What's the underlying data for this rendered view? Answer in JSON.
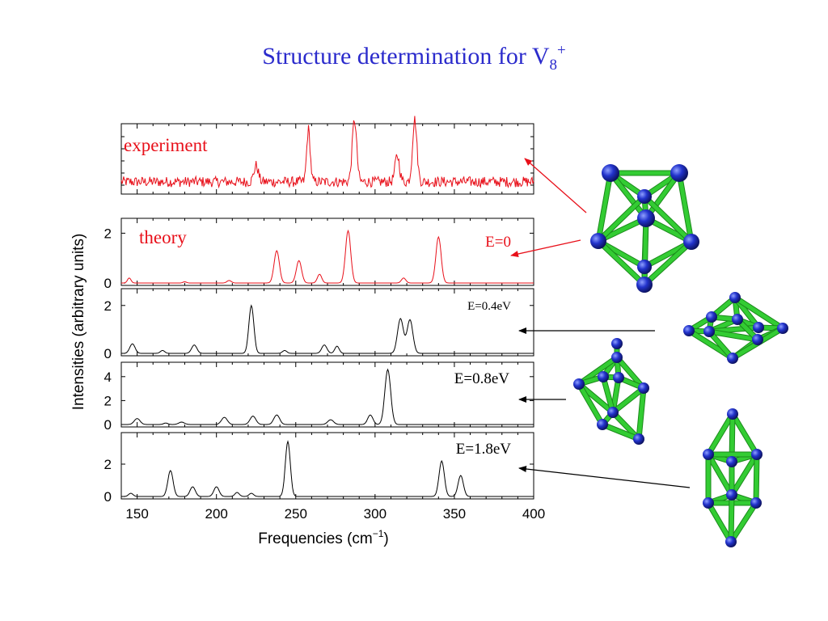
{
  "title": {
    "main": "Structure determination for  V",
    "sub": "8",
    "sup": "+"
  },
  "colors": {
    "title": "#2b2bcc",
    "experiment": "#e8101a",
    "theory": "#e8101a",
    "isomer": "#000000",
    "bond": "#33cc33",
    "atom": "#2233cc"
  },
  "chart_data": {
    "type": "line",
    "xlabel": "Frequencies (cm⁻¹)",
    "xlabel_base": "Frequencies (cm",
    "xlabel_sup": "−1",
    "xlabel_close": ")",
    "ylabel": "Intensities (arbitrary units)",
    "xlim": [
      140,
      400
    ],
    "xticks": [
      "150",
      "200",
      "250",
      "300",
      "350",
      "400"
    ],
    "panels": [
      {
        "label": "experiment",
        "energy": "",
        "color": "#e8101a",
        "ylim": [
          0,
          1
        ],
        "yticks": [],
        "peaks": [
          [
            225,
            0.25,
            1.5
          ],
          [
            258,
            0.8,
            1.2
          ],
          [
            287,
            0.95,
            1.5
          ],
          [
            314,
            0.4,
            1.5
          ],
          [
            325,
            0.95,
            1.5
          ]
        ]
      },
      {
        "label": "theory",
        "energy": "E=0",
        "color": "#e8101a",
        "ylim": [
          0,
          2.5
        ],
        "yticks": [
          "0",
          "2"
        ],
        "peaks": [
          [
            145,
            0.2,
            1.2
          ],
          [
            180,
            0.05,
            1.2
          ],
          [
            208,
            0.1,
            1.5
          ],
          [
            238,
            1.3,
            1.8
          ],
          [
            252,
            0.9,
            1.8
          ],
          [
            265,
            0.35,
            1.5
          ],
          [
            283,
            2.1,
            1.8
          ],
          [
            318,
            0.2,
            1.5
          ],
          [
            340,
            1.85,
            1.8
          ]
        ]
      },
      {
        "label": "",
        "energy": "E=0.4eV",
        "color": "#000000",
        "ylim": [
          0,
          2.6
        ],
        "yticks": [
          "0",
          "2"
        ],
        "peaks": [
          [
            147,
            0.4,
            1.8
          ],
          [
            166,
            0.12,
            1.5
          ],
          [
            186,
            0.35,
            1.8
          ],
          [
            222,
            2.0,
            1.7
          ],
          [
            243,
            0.12,
            1.5
          ],
          [
            268,
            0.35,
            1.8
          ],
          [
            276,
            0.3,
            1.5
          ],
          [
            316,
            1.45,
            2.0
          ],
          [
            322,
            1.4,
            2.0
          ]
        ]
      },
      {
        "label": "",
        "energy": "E=0.8eV",
        "color": "#000000",
        "ylim": [
          0,
          5
        ],
        "yticks": [
          "0",
          "2",
          "4"
        ],
        "peaks": [
          [
            150,
            0.5,
            2.0
          ],
          [
            168,
            0.12,
            1.5
          ],
          [
            178,
            0.2,
            2.0
          ],
          [
            205,
            0.6,
            2.0
          ],
          [
            223,
            0.7,
            2.0
          ],
          [
            238,
            0.8,
            2.0
          ],
          [
            272,
            0.4,
            2.0
          ],
          [
            297,
            0.8,
            1.8
          ],
          [
            308,
            4.6,
            2.0
          ]
        ]
      },
      {
        "label": "",
        "energy": "E=1.8eV",
        "color": "#000000",
        "ylim": [
          0,
          3.8
        ],
        "yticks": [
          "0",
          "2"
        ],
        "peaks": [
          [
            146,
            0.2,
            1.5
          ],
          [
            171,
            1.6,
            1.8
          ],
          [
            185,
            0.6,
            1.8
          ],
          [
            200,
            0.6,
            1.8
          ],
          [
            213,
            0.25,
            1.5
          ],
          [
            222,
            0.2,
            1.5
          ],
          [
            245,
            3.4,
            1.7
          ],
          [
            342,
            2.2,
            1.8
          ],
          [
            354,
            1.3,
            1.8
          ]
        ]
      }
    ]
  }
}
